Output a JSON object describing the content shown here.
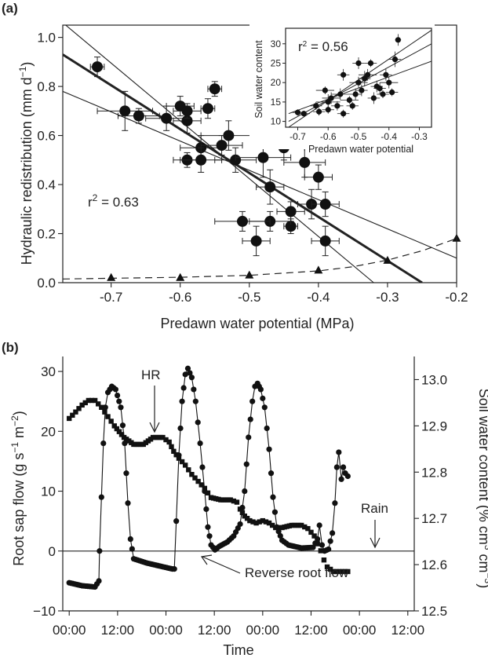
{
  "chart_data": [
    {
      "panel": "(a)",
      "type": "scatter",
      "xlabel": "Predawn water potential (MPa)",
      "ylabel": "Hydraulic redistribution (mm d−1)",
      "xlim": [
        -0.77,
        -0.2
      ],
      "ylim": [
        0.0,
        1.05
      ],
      "xticks": [
        "-0.7",
        "-0.6",
        "-0.5",
        "-0.4",
        "-0.3",
        "-0.2"
      ],
      "yticks": [
        "0.0",
        "0.2",
        "0.4",
        "0.6",
        "0.8",
        "1.0"
      ],
      "annotation": "r2 = 0.63",
      "series": [
        {
          "marker": "circle",
          "points": [
            {
              "x": -0.72,
              "y": 0.88,
              "xerr": 0.01,
              "yerr": 0.04
            },
            {
              "x": -0.68,
              "y": 0.7,
              "xerr": 0.04,
              "yerr": 0.08
            },
            {
              "x": -0.66,
              "y": 0.68,
              "xerr": 0.03,
              "yerr": 0.03
            },
            {
              "x": -0.62,
              "y": 0.67,
              "xerr": 0.03,
              "yerr": 0.05
            },
            {
              "x": -0.6,
              "y": 0.72,
              "xerr": 0.02,
              "yerr": 0.04
            },
            {
              "x": -0.59,
              "y": 0.66,
              "xerr": 0.02,
              "yerr": 0.05
            },
            {
              "x": -0.59,
              "y": 0.7,
              "xerr": 0.02,
              "yerr": 0.03
            },
            {
              "x": -0.56,
              "y": 0.71,
              "xerr": 0.01,
              "yerr": 0.04
            },
            {
              "x": -0.55,
              "y": 0.79,
              "xerr": 0.01,
              "yerr": 0.03
            },
            {
              "x": -0.57,
              "y": 0.55,
              "xerr": 0.03,
              "yerr": 0.05
            },
            {
              "x": -0.53,
              "y": 0.6,
              "xerr": 0.04,
              "yerr": 0.06
            },
            {
              "x": -0.54,
              "y": 0.56,
              "xerr": 0.03,
              "yerr": 0.04
            },
            {
              "x": -0.59,
              "y": 0.5,
              "xerr": 0.02,
              "yerr": 0.03
            },
            {
              "x": -0.57,
              "y": 0.5,
              "xerr": 0.03,
              "yerr": 0.05
            },
            {
              "x": -0.52,
              "y": 0.5,
              "xerr": 0.03,
              "yerr": 0.05
            },
            {
              "x": -0.48,
              "y": 0.51,
              "xerr": 0.04,
              "yerr": 0.08
            },
            {
              "x": -0.47,
              "y": 0.39,
              "xerr": 0.02,
              "yerr": 0.07
            },
            {
              "x": -0.45,
              "y": 0.55,
              "xerr": 0.03,
              "yerr": 0.05
            },
            {
              "x": -0.42,
              "y": 0.49,
              "xerr": 0.03,
              "yerr": 0.06
            },
            {
              "x": -0.4,
              "y": 0.43,
              "xerr": 0.02,
              "yerr": 0.05
            },
            {
              "x": -0.44,
              "y": 0.29,
              "xerr": 0.02,
              "yerr": 0.04
            },
            {
              "x": -0.41,
              "y": 0.32,
              "xerr": 0.02,
              "yerr": 0.06
            },
            {
              "x": -0.39,
              "y": 0.32,
              "xerr": 0.02,
              "yerr": 0.05
            },
            {
              "x": -0.44,
              "y": 0.23,
              "xerr": 0.01,
              "yerr": 0.03
            },
            {
              "x": -0.47,
              "y": 0.25,
              "xerr": 0.03,
              "yerr": 0.04
            },
            {
              "x": -0.51,
              "y": 0.25,
              "xerr": 0.04,
              "yerr": 0.04
            },
            {
              "x": -0.49,
              "y": 0.17,
              "xerr": 0.02,
              "yerr": 0.06
            },
            {
              "x": -0.39,
              "y": 0.17,
              "xerr": 0.02,
              "yerr": 0.06
            }
          ]
        },
        {
          "marker": "triangle",
          "line": "dashed",
          "points": [
            {
              "x": -0.7,
              "y": 0.02
            },
            {
              "x": -0.6,
              "y": 0.02
            },
            {
              "x": -0.5,
              "y": 0.03
            },
            {
              "x": -0.4,
              "y": 0.05
            },
            {
              "x": -0.3,
              "y": 0.09
            },
            {
              "x": -0.2,
              "y": 0.18
            }
          ],
          "curve": [
            [
              -0.77,
              0.015
            ],
            [
              -0.7,
              0.018
            ],
            [
              -0.6,
              0.022
            ],
            [
              -0.5,
              0.03
            ],
            [
              -0.4,
              0.048
            ],
            [
              -0.35,
              0.065
            ],
            [
              -0.3,
              0.092
            ],
            [
              -0.25,
              0.13
            ],
            [
              -0.2,
              0.18
            ]
          ]
        }
      ],
      "fit_lines": [
        {
          "role": "fit",
          "from": [
            -0.77,
            0.93
          ],
          "to": [
            -0.25,
            0.0
          ],
          "weight": "bold"
        },
        {
          "role": "ci",
          "from": [
            -0.77,
            1.06
          ],
          "to": [
            -0.32,
            0.0
          ]
        },
        {
          "role": "ci",
          "from": [
            -0.77,
            0.78
          ],
          "to": [
            -0.2,
            0.1
          ]
        }
      ],
      "inset": {
        "type": "scatter",
        "xlabel": "Predawn water potential",
        "ylabel": "Soil water content",
        "xlim": [
          -0.74,
          -0.26
        ],
        "ylim": [
          8.5,
          34
        ],
        "xticks": [
          "-0.7",
          "-0.6",
          "-0.5",
          "-0.4",
          "-0.3"
        ],
        "yticks": [
          "10",
          "15",
          "20",
          "25",
          "30"
        ],
        "annotation": "r2 = 0.56",
        "points": [
          {
            "x": -0.7,
            "y": 12.3,
            "xerr": 0.02,
            "yerr": 0.8
          },
          {
            "x": -0.68,
            "y": 12.0,
            "xerr": 0.02,
            "yerr": 0.7
          },
          {
            "x": -0.64,
            "y": 14.0,
            "xerr": 0.02,
            "yerr": 1.0
          },
          {
            "x": -0.63,
            "y": 12.5,
            "xerr": 0.02,
            "yerr": 1.0
          },
          {
            "x": -0.61,
            "y": 18.0,
            "xerr": 0.03,
            "yerr": 1.0
          },
          {
            "x": -0.6,
            "y": 15.0,
            "xerr": 0.04,
            "yerr": 2.0
          },
          {
            "x": -0.6,
            "y": 13.0,
            "xerr": 0.02,
            "yerr": 1.0
          },
          {
            "x": -0.59,
            "y": 16.0,
            "xerr": 0.03,
            "yerr": 1.5
          },
          {
            "x": -0.57,
            "y": 14.0,
            "xerr": 0.02,
            "yerr": 1.2
          },
          {
            "x": -0.56,
            "y": 17.0,
            "xerr": 0.03,
            "yerr": 1.5
          },
          {
            "x": -0.55,
            "y": 22.0,
            "xerr": 0.02,
            "yerr": 1.5
          },
          {
            "x": -0.55,
            "y": 12.0,
            "xerr": 0.02,
            "yerr": 1.0
          },
          {
            "x": -0.53,
            "y": 15.5,
            "xerr": 0.03,
            "yerr": 1.0
          },
          {
            "x": -0.52,
            "y": 14.0,
            "xerr": 0.02,
            "yerr": 1.0
          },
          {
            "x": -0.51,
            "y": 17.0,
            "xerr": 0.02,
            "yerr": 1.5
          },
          {
            "x": -0.5,
            "y": 25.0,
            "xerr": 0.02,
            "yerr": 1.5
          },
          {
            "x": -0.5,
            "y": 20.0,
            "xerr": 0.03,
            "yerr": 1.5
          },
          {
            "x": -0.49,
            "y": 18.0,
            "xerr": 0.02,
            "yerr": 1.5
          },
          {
            "x": -0.48,
            "y": 21.0,
            "xerr": 0.02,
            "yerr": 2.0
          },
          {
            "x": -0.47,
            "y": 22.0,
            "xerr": 0.03,
            "yerr": 1.5
          },
          {
            "x": -0.46,
            "y": 25.0,
            "xerr": 0.02,
            "yerr": 1.0
          },
          {
            "x": -0.45,
            "y": 16.0,
            "xerr": 0.02,
            "yerr": 1.5
          },
          {
            "x": -0.44,
            "y": 19.0,
            "xerr": 0.02,
            "yerr": 1.5
          },
          {
            "x": -0.43,
            "y": 18.5,
            "xerr": 0.02,
            "yerr": 1.5
          },
          {
            "x": -0.42,
            "y": 17.0,
            "xerr": 0.02,
            "yerr": 1.0
          },
          {
            "x": -0.41,
            "y": 22.0,
            "xerr": 0.02,
            "yerr": 1.5
          },
          {
            "x": -0.4,
            "y": 20.0,
            "xerr": 0.03,
            "yerr": 1.5
          },
          {
            "x": -0.39,
            "y": 17.5,
            "xerr": 0.02,
            "yerr": 1.0
          },
          {
            "x": -0.38,
            "y": 26.0,
            "xerr": 0.02,
            "yerr": 2.0
          },
          {
            "x": -0.37,
            "y": 31.0,
            "xerr": 0.01,
            "yerr": 1.5
          }
        ],
        "fit_lines": [
          {
            "role": "fit",
            "from": [
              -0.73,
              10.0
            ],
            "to": [
              -0.26,
              30.0
            ]
          },
          {
            "role": "ci",
            "from": [
              -0.73,
              12.0
            ],
            "to": [
              -0.26,
              25.5
            ]
          },
          {
            "role": "ci",
            "from": [
              -0.73,
              8.5
            ],
            "to": [
              -0.26,
              33.5
            ]
          }
        ]
      }
    },
    {
      "panel": "(b)",
      "type": "line",
      "xlabel": "Time",
      "ylabel": "Root sap flow (g s−1 m−2)",
      "ylabel_right": "Soil water content (% cm3 cm−3)",
      "xlim": [
        -0.1,
        5.35
      ],
      "ylim": [
        -10,
        32.5
      ],
      "ylim_right": [
        12.5,
        13.05
      ],
      "xticks": [
        "00:00",
        "12:00",
        "00:00",
        "12:00",
        "00:00",
        "12:00",
        "00:00",
        "12:00"
      ],
      "yticks": [
        "−10",
        "0",
        "10",
        "20",
        "30"
      ],
      "yticks_right": [
        "12.5",
        "12.6",
        "12.7",
        "12.8",
        "12.9",
        "13.0"
      ],
      "zero_line": true,
      "annotations": [
        "HR",
        "Reverse root flow",
        "Rain"
      ],
      "series": [
        {
          "axis": "left",
          "marker": "circle",
          "knots": [
            [
              0.0,
              -5.3
            ],
            [
              0.2,
              -5.8
            ],
            [
              0.4,
              -6.0
            ],
            [
              0.46,
              -5.0
            ],
            [
              0.47,
              0.0
            ],
            [
              0.5,
              9.0
            ],
            [
              0.53,
              18.0
            ],
            [
              0.56,
              24.0
            ],
            [
              0.6,
              26.5
            ],
            [
              0.66,
              27.5
            ],
            [
              0.72,
              27.0
            ],
            [
              0.8,
              24.0
            ],
            [
              0.86,
              18.0
            ],
            [
              0.91,
              8.0
            ],
            [
              0.95,
              2.0
            ],
            [
              1.0,
              -1.3
            ],
            [
              1.2,
              -2.0
            ],
            [
              1.4,
              -2.5
            ],
            [
              1.6,
              -3.0
            ],
            [
              1.63,
              -3.0
            ],
            [
              1.66,
              5.0
            ],
            [
              1.7,
              16.0
            ],
            [
              1.75,
              25.0
            ],
            [
              1.8,
              29.5
            ],
            [
              1.84,
              30.5
            ],
            [
              1.9,
              29.0
            ],
            [
              1.96,
              25.0
            ],
            [
              2.03,
              18.0
            ],
            [
              2.1,
              10.0
            ],
            [
              2.15,
              4.0
            ],
            [
              2.2,
              1.0
            ],
            [
              2.26,
              0.2
            ],
            [
              2.33,
              0.8
            ],
            [
              2.45,
              1.5
            ],
            [
              2.55,
              2.5
            ],
            [
              2.65,
              4.5
            ],
            [
              2.72,
              10.0
            ],
            [
              2.78,
              19.0
            ],
            [
              2.84,
              25.0
            ],
            [
              2.88,
              27.5
            ],
            [
              2.92,
              28.0
            ],
            [
              2.97,
              27.0
            ],
            [
              3.03,
              24.0
            ],
            [
              3.1,
              17.0
            ],
            [
              3.16,
              9.0
            ],
            [
              3.22,
              4.0
            ],
            [
              3.3,
              1.8
            ],
            [
              3.4,
              1.0
            ],
            [
              3.6,
              0.5
            ],
            [
              3.78,
              0.6
            ],
            [
              3.85,
              2.0
            ],
            [
              3.88,
              4.3
            ],
            [
              3.92,
              1.0
            ],
            [
              3.96,
              0.0
            ],
            [
              4.02,
              0.3
            ],
            [
              4.08,
              3.0
            ],
            [
              4.12,
              8.0
            ],
            [
              4.15,
              14.0
            ],
            [
              4.18,
              16.5
            ],
            [
              4.22,
              12.0
            ],
            [
              4.25,
              14.0
            ],
            [
              4.28,
              13.0
            ],
            [
              4.32,
              12.5
            ]
          ]
        },
        {
          "axis": "right",
          "marker": "square",
          "knots": [
            [
              0.0,
              12.916
            ],
            [
              0.1,
              12.93
            ],
            [
              0.2,
              12.945
            ],
            [
              0.3,
              12.955
            ],
            [
              0.4,
              12.955
            ],
            [
              0.5,
              12.94
            ],
            [
              0.6,
              12.92
            ],
            [
              0.7,
              12.9
            ],
            [
              0.85,
              12.875
            ],
            [
              1.0,
              12.86
            ],
            [
              1.15,
              12.86
            ],
            [
              1.3,
              12.875
            ],
            [
              1.45,
              12.875
            ],
            [
              1.55,
              12.865
            ],
            [
              1.62,
              12.845
            ],
            [
              1.7,
              12.83
            ],
            [
              1.8,
              12.815
            ],
            [
              1.9,
              12.795
            ],
            [
              2.0,
              12.78
            ],
            [
              2.1,
              12.765
            ],
            [
              2.2,
              12.745
            ],
            [
              2.35,
              12.74
            ],
            [
              2.5,
              12.74
            ],
            [
              2.6,
              12.735
            ],
            [
              2.65,
              12.72
            ],
            [
              2.72,
              12.705
            ],
            [
              2.8,
              12.695
            ],
            [
              2.9,
              12.69
            ],
            [
              3.0,
              12.695
            ],
            [
              3.1,
              12.69
            ],
            [
              3.2,
              12.68
            ],
            [
              3.3,
              12.68
            ],
            [
              3.45,
              12.685
            ],
            [
              3.6,
              12.685
            ],
            [
              3.7,
              12.678
            ],
            [
              3.8,
              12.662
            ],
            [
              3.85,
              12.645
            ],
            [
              3.9,
              12.63
            ],
            [
              3.95,
              12.61
            ],
            [
              4.0,
              12.595
            ],
            [
              4.05,
              12.59
            ],
            [
              4.1,
              12.585
            ],
            [
              4.32,
              12.585
            ]
          ]
        }
      ]
    }
  ]
}
